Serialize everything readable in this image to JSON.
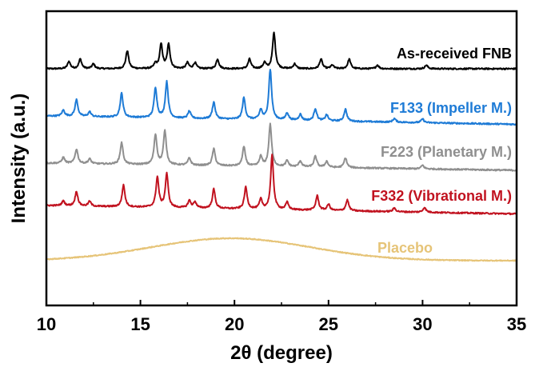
{
  "chart_data": {
    "type": "line",
    "xlabel": "2θ (degree)",
    "ylabel": "Intensity (a.u.)",
    "xlim": [
      10,
      35
    ],
    "xticks": [
      "10",
      "15",
      "20",
      "25",
      "30",
      "35"
    ],
    "y_tick_labels": false,
    "stacked_offset_traces": true,
    "series": [
      {
        "name": "As-received FNB",
        "color": "#000000",
        "baseline_left": 0.0,
        "baseline_right": 0.0,
        "peaks": [
          {
            "x": 11.2,
            "h": 0.06
          },
          {
            "x": 11.8,
            "h": 0.08
          },
          {
            "x": 12.5,
            "h": 0.04
          },
          {
            "x": 14.3,
            "h": 0.15
          },
          {
            "x": 15.8,
            "h": 0.04
          },
          {
            "x": 16.1,
            "h": 0.2
          },
          {
            "x": 16.5,
            "h": 0.2
          },
          {
            "x": 17.5,
            "h": 0.05
          },
          {
            "x": 17.9,
            "h": 0.05
          },
          {
            "x": 19.1,
            "h": 0.08
          },
          {
            "x": 20.8,
            "h": 0.08
          },
          {
            "x": 21.6,
            "h": 0.05
          },
          {
            "x": 22.1,
            "h": 0.3
          },
          {
            "x": 23.2,
            "h": 0.04
          },
          {
            "x": 24.6,
            "h": 0.08
          },
          {
            "x": 25.2,
            "h": 0.03
          },
          {
            "x": 26.1,
            "h": 0.08
          },
          {
            "x": 27.6,
            "h": 0.03
          },
          {
            "x": 30.2,
            "h": 0.03
          }
        ]
      },
      {
        "name": "F133 (Impeller M.)",
        "color": "#1e7bd6",
        "baseline_left": 0.0,
        "baseline_right": -0.07,
        "peaks": [
          {
            "x": 10.9,
            "h": 0.05
          },
          {
            "x": 11.6,
            "h": 0.14
          },
          {
            "x": 12.3,
            "h": 0.04
          },
          {
            "x": 14.0,
            "h": 0.2
          },
          {
            "x": 15.8,
            "h": 0.25
          },
          {
            "x": 16.4,
            "h": 0.3
          },
          {
            "x": 17.6,
            "h": 0.06
          },
          {
            "x": 18.9,
            "h": 0.14
          },
          {
            "x": 20.5,
            "h": 0.18
          },
          {
            "x": 21.4,
            "h": 0.08
          },
          {
            "x": 21.9,
            "h": 0.42
          },
          {
            "x": 22.8,
            "h": 0.06
          },
          {
            "x": 23.5,
            "h": 0.05
          },
          {
            "x": 24.3,
            "h": 0.1
          },
          {
            "x": 24.9,
            "h": 0.05
          },
          {
            "x": 25.9,
            "h": 0.1
          },
          {
            "x": 28.5,
            "h": 0.03
          },
          {
            "x": 30.0,
            "h": 0.03
          }
        ]
      },
      {
        "name": "F223 (Planetary M.)",
        "color": "#8f8f8f",
        "baseline_left": 0.0,
        "baseline_right": -0.06,
        "peaks": [
          {
            "x": 10.9,
            "h": 0.05
          },
          {
            "x": 11.6,
            "h": 0.12
          },
          {
            "x": 12.3,
            "h": 0.04
          },
          {
            "x": 14.0,
            "h": 0.18
          },
          {
            "x": 15.8,
            "h": 0.25
          },
          {
            "x": 16.3,
            "h": 0.28
          },
          {
            "x": 17.6,
            "h": 0.06
          },
          {
            "x": 18.9,
            "h": 0.14
          },
          {
            "x": 20.5,
            "h": 0.16
          },
          {
            "x": 21.4,
            "h": 0.08
          },
          {
            "x": 21.9,
            "h": 0.35
          },
          {
            "x": 22.8,
            "h": 0.05
          },
          {
            "x": 23.5,
            "h": 0.05
          },
          {
            "x": 24.3,
            "h": 0.09
          },
          {
            "x": 24.9,
            "h": 0.05
          },
          {
            "x": 25.9,
            "h": 0.08
          },
          {
            "x": 30.0,
            "h": 0.03
          }
        ]
      },
      {
        "name": "F332 (Vibrational M.)",
        "color": "#c1121f",
        "baseline_left": 0.0,
        "baseline_right": -0.07,
        "peaks": [
          {
            "x": 10.9,
            "h": 0.04
          },
          {
            "x": 11.6,
            "h": 0.12
          },
          {
            "x": 12.3,
            "h": 0.04
          },
          {
            "x": 14.1,
            "h": 0.18
          },
          {
            "x": 15.9,
            "h": 0.25
          },
          {
            "x": 16.4,
            "h": 0.28
          },
          {
            "x": 17.6,
            "h": 0.06
          },
          {
            "x": 17.9,
            "h": 0.05
          },
          {
            "x": 18.9,
            "h": 0.16
          },
          {
            "x": 20.6,
            "h": 0.18
          },
          {
            "x": 21.4,
            "h": 0.08
          },
          {
            "x": 22.0,
            "h": 0.45
          },
          {
            "x": 22.8,
            "h": 0.06
          },
          {
            "x": 24.4,
            "h": 0.12
          },
          {
            "x": 25.0,
            "h": 0.05
          },
          {
            "x": 26.0,
            "h": 0.09
          },
          {
            "x": 28.5,
            "h": 0.03
          },
          {
            "x": 30.1,
            "h": 0.04
          }
        ]
      },
      {
        "name": "Placebo",
        "color": "#e6c478",
        "baseline_left": 0.0,
        "baseline_right": 0.0,
        "amorphous_halo": {
          "center": 19.8,
          "width": 4.2,
          "h": 0.28
        },
        "peaks": []
      }
    ]
  }
}
